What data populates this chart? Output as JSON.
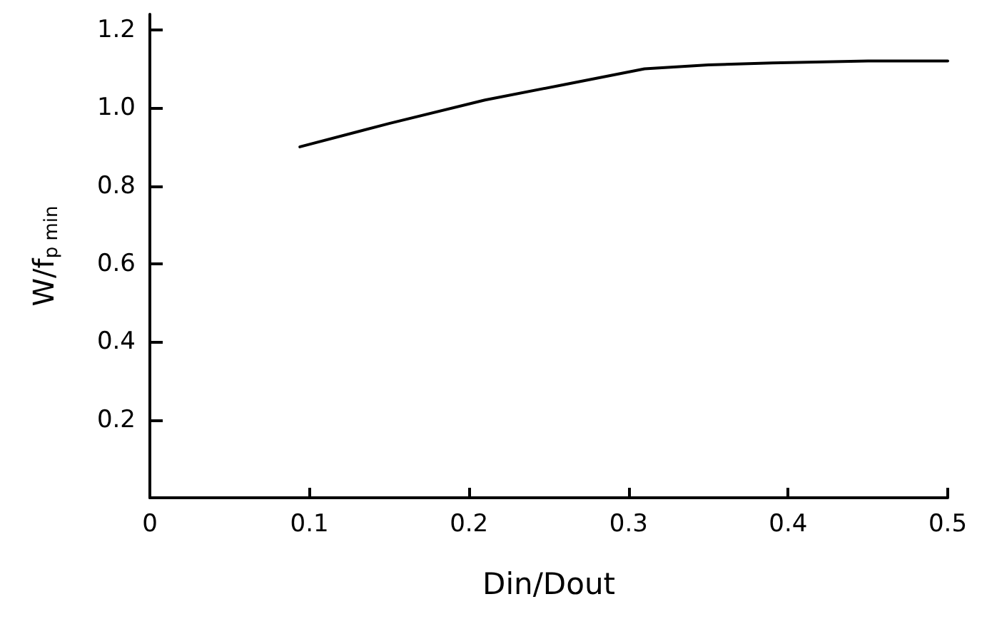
{
  "chart_data": {
    "type": "line",
    "xlabel": "Din/Dout",
    "ylabel": "W/f$_{p min}$",
    "xlim": [
      0,
      0.5
    ],
    "ylim": [
      0,
      1.24
    ],
    "xticks": [
      0,
      0.1,
      0.2,
      0.3,
      0.4,
      0.5
    ],
    "yticks": [
      {
        "value": 0,
        "label": null
      },
      0.2,
      0.4,
      0.6,
      0.8,
      {
        "value": 1.0,
        "label": "1.0"
      },
      1.2
    ],
    "series": [
      {
        "color": "#000000",
        "x": [
          0.094,
          0.15,
          0.21,
          0.26,
          0.31,
          0.35,
          0.39,
          0.45,
          0.5
        ],
        "values": [
          0.9,
          0.96,
          1.02,
          1.06,
          1.1,
          1.11,
          1.115,
          1.12,
          1.12
        ]
      }
    ],
    "marker": "none",
    "line_style": "solid"
  }
}
